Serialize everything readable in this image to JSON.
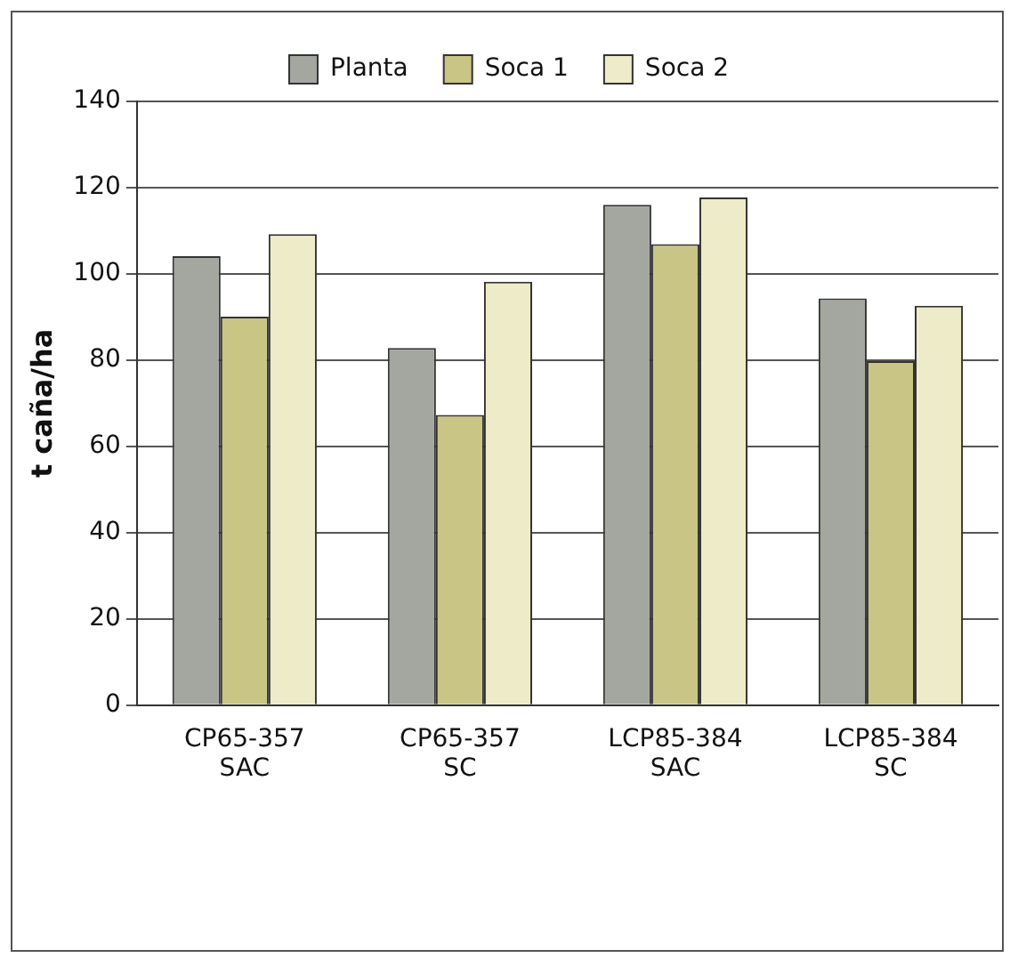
{
  "chart_data": {
    "type": "bar",
    "ylabel": "t caña/ha",
    "categories": [
      "CP65-357\nSAC",
      "CP65-357\nSC",
      "LCP85-384\nSAC",
      "LCP85-384\nSC"
    ],
    "series": [
      {
        "name": "Planta",
        "color": "#a4a7a0",
        "values": [
          104.1,
          82.8,
          116,
          94.3
        ]
      },
      {
        "name": "Soca 1",
        "color": "#c9c585",
        "values": [
          90.1,
          67.3,
          106.9,
          79.8
        ]
      },
      {
        "name": "Soca 2",
        "color": "#eeebc8",
        "values": [
          109.2,
          98.2,
          117.7,
          92.6
        ]
      }
    ],
    "ylim": [
      0,
      140
    ],
    "yticks": [
      0,
      20,
      40,
      60,
      80,
      100,
      120,
      140
    ],
    "grid": "y",
    "legend": "top"
  }
}
